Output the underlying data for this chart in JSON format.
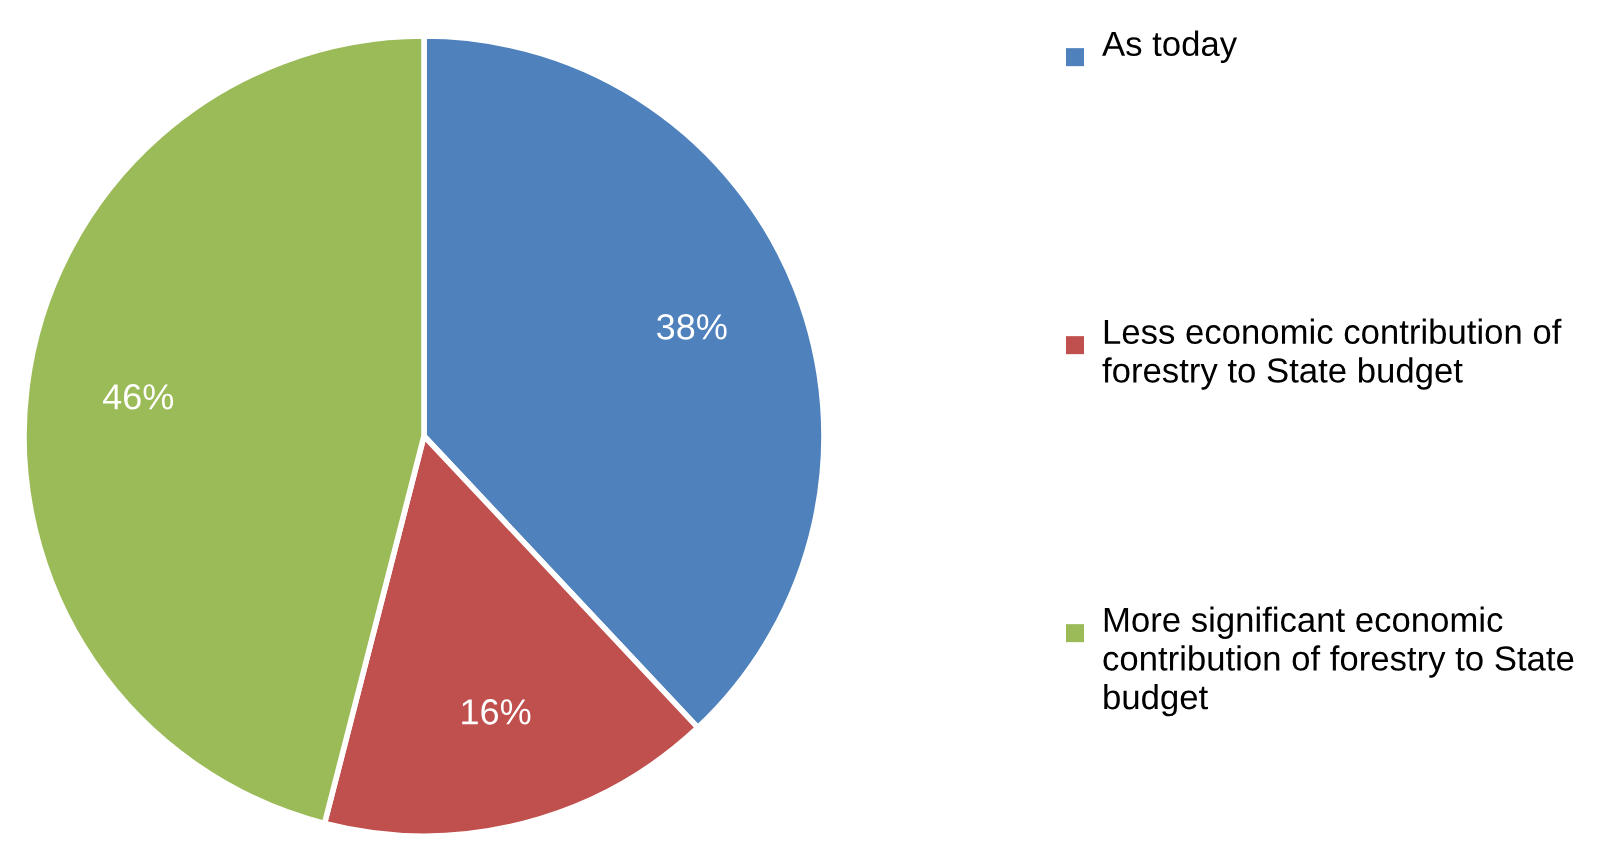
{
  "chart_data": {
    "type": "pie",
    "categories": [
      "As today",
      "Less economic contribution of forestry to State budget",
      "More significant economic contribution of forestry to State budget"
    ],
    "values": [
      38,
      16,
      46
    ],
    "colors": [
      "#4f81bd",
      "#c0504d",
      "#9bbb59"
    ],
    "value_labels": [
      "38%",
      "16%",
      "46%"
    ],
    "legend": "right"
  }
}
